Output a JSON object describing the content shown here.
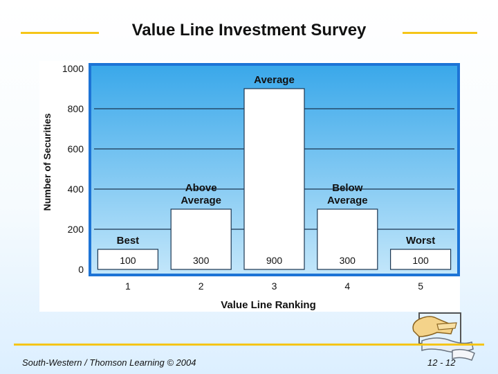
{
  "slide": {
    "title": "Value Line Investment Survey",
    "footer_left": "South-Western / Thomson Learning © 2004",
    "footer_right": "12 - 12",
    "accent_color": "#f5c518"
  },
  "chart_data": {
    "type": "bar",
    "title": "",
    "xlabel": "Value Line Ranking",
    "ylabel": "Number of Securities",
    "categories": [
      "1",
      "2",
      "3",
      "4",
      "5"
    ],
    "values": [
      100,
      300,
      900,
      300,
      100
    ],
    "value_labels": [
      "100",
      "300",
      "900",
      "300",
      "100"
    ],
    "bar_labels": [
      [
        "Best"
      ],
      [
        "Above",
        "Average"
      ],
      [
        "Average"
      ],
      [
        "Below",
        "Average"
      ],
      [
        "Worst"
      ]
    ],
    "yticks": [
      0,
      200,
      400,
      600,
      800,
      1000
    ],
    "ylim": [
      0,
      1000
    ],
    "grid": true,
    "background_gradient": [
      "#3aa8ea",
      "#c2e6fa"
    ],
    "frame_color": "#1d74d6",
    "bar_color": "#ffffff"
  },
  "icons": {
    "clip_art": "pointing-hand-icon"
  }
}
